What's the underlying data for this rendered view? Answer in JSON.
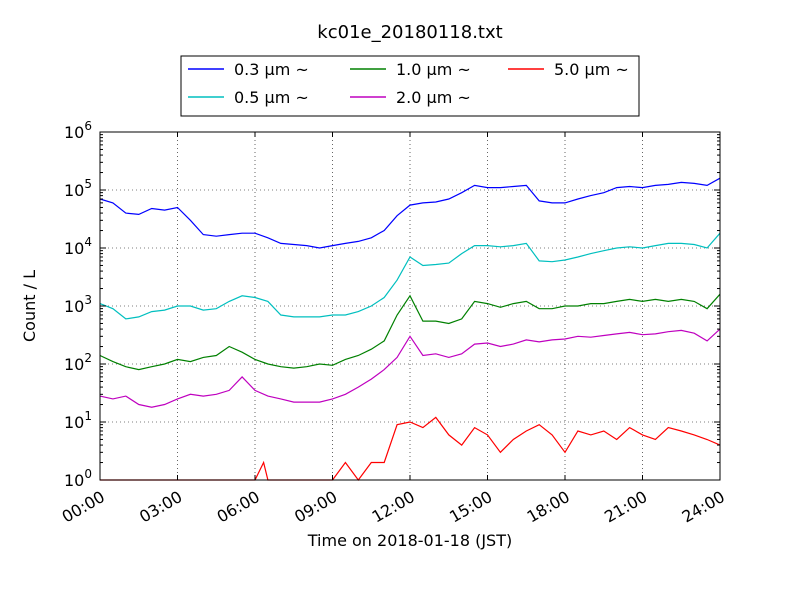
{
  "chart_data": {
    "type": "line",
    "title": "kc01e_20180118.txt",
    "xlabel": "Time on 2018-01-18 (JST)",
    "ylabel": "Count / L",
    "yscale": "log",
    "ylim": [
      1,
      1000000
    ],
    "xlim": [
      "00:00",
      "24:00"
    ],
    "grid": true,
    "legend_position": "top-center",
    "x_ticks": [
      "00:00",
      "03:00",
      "06:00",
      "09:00",
      "12:00",
      "15:00",
      "18:00",
      "21:00",
      "24:00"
    ],
    "y_ticks": [
      {
        "base": "10",
        "exp": "0",
        "value": 1
      },
      {
        "base": "10",
        "exp": "1",
        "value": 10
      },
      {
        "base": "10",
        "exp": "2",
        "value": 100
      },
      {
        "base": "10",
        "exp": "3",
        "value": 1000
      },
      {
        "base": "10",
        "exp": "4",
        "value": 10000
      },
      {
        "base": "10",
        "exp": "5",
        "value": 100000
      },
      {
        "base": "10",
        "exp": "6",
        "value": 1000000
      }
    ],
    "series": [
      {
        "name": "0.3 μm ~",
        "color": "#0000ff",
        "points": [
          [
            "00:00",
            70000
          ],
          [
            "00:30",
            60000
          ],
          [
            "01:00",
            40000
          ],
          [
            "01:30",
            38000
          ],
          [
            "02:00",
            48000
          ],
          [
            "02:30",
            45000
          ],
          [
            "03:00",
            50000
          ],
          [
            "03:30",
            30000
          ],
          [
            "04:00",
            17000
          ],
          [
            "04:30",
            16000
          ],
          [
            "05:00",
            17000
          ],
          [
            "05:30",
            18000
          ],
          [
            "06:00",
            18000
          ],
          [
            "06:30",
            15000
          ],
          [
            "07:00",
            12000
          ],
          [
            "07:30",
            11500
          ],
          [
            "08:00",
            11000
          ],
          [
            "08:30",
            10000
          ],
          [
            "09:00",
            11000
          ],
          [
            "09:30",
            12000
          ],
          [
            "10:00",
            13000
          ],
          [
            "10:30",
            15000
          ],
          [
            "11:00",
            20000
          ],
          [
            "11:30",
            36000
          ],
          [
            "12:00",
            55000
          ],
          [
            "12:30",
            60000
          ],
          [
            "13:00",
            62000
          ],
          [
            "13:30",
            70000
          ],
          [
            "14:00",
            90000
          ],
          [
            "14:30",
            120000
          ],
          [
            "15:00",
            110000
          ],
          [
            "15:30",
            110000
          ],
          [
            "16:00",
            115000
          ],
          [
            "16:30",
            120000
          ],
          [
            "17:00",
            65000
          ],
          [
            "17:30",
            60000
          ],
          [
            "18:00",
            60000
          ],
          [
            "18:30",
            70000
          ],
          [
            "19:00",
            80000
          ],
          [
            "19:30",
            90000
          ],
          [
            "20:00",
            110000
          ],
          [
            "20:30",
            115000
          ],
          [
            "21:00",
            110000
          ],
          [
            "21:30",
            120000
          ],
          [
            "22:00",
            125000
          ],
          [
            "22:30",
            135000
          ],
          [
            "23:00",
            130000
          ],
          [
            "23:30",
            120000
          ],
          [
            "24:00",
            160000
          ]
        ]
      },
      {
        "name": "0.5 μm ~",
        "color": "#00bfbf",
        "points": [
          [
            "00:00",
            1100
          ],
          [
            "00:30",
            900
          ],
          [
            "01:00",
            600
          ],
          [
            "01:30",
            650
          ],
          [
            "02:00",
            800
          ],
          [
            "02:30",
            850
          ],
          [
            "03:00",
            1000
          ],
          [
            "03:30",
            1000
          ],
          [
            "04:00",
            850
          ],
          [
            "04:30",
            900
          ],
          [
            "05:00",
            1200
          ],
          [
            "05:30",
            1500
          ],
          [
            "06:00",
            1400
          ],
          [
            "06:30",
            1200
          ],
          [
            "07:00",
            700
          ],
          [
            "07:30",
            650
          ],
          [
            "08:00",
            650
          ],
          [
            "08:30",
            650
          ],
          [
            "09:00",
            700
          ],
          [
            "09:30",
            700
          ],
          [
            "10:00",
            800
          ],
          [
            "10:30",
            1000
          ],
          [
            "11:00",
            1400
          ],
          [
            "11:30",
            2800
          ],
          [
            "12:00",
            7000
          ],
          [
            "12:30",
            5000
          ],
          [
            "13:00",
            5200
          ],
          [
            "13:30",
            5500
          ],
          [
            "14:00",
            8000
          ],
          [
            "14:30",
            11000
          ],
          [
            "15:00",
            11000
          ],
          [
            "15:30",
            10500
          ],
          [
            "16:00",
            11000
          ],
          [
            "16:30",
            12000
          ],
          [
            "17:00",
            6000
          ],
          [
            "17:30",
            5800
          ],
          [
            "18:00",
            6200
          ],
          [
            "18:30",
            7000
          ],
          [
            "19:00",
            8000
          ],
          [
            "19:30",
            9000
          ],
          [
            "20:00",
            10000
          ],
          [
            "20:30",
            10500
          ],
          [
            "21:00",
            10000
          ],
          [
            "21:30",
            11000
          ],
          [
            "22:00",
            12000
          ],
          [
            "22:30",
            12000
          ],
          [
            "23:00",
            11500
          ],
          [
            "23:30",
            10000
          ],
          [
            "24:00",
            18000
          ]
        ]
      },
      {
        "name": "1.0 μm ~",
        "color": "#008000",
        "points": [
          [
            "00:00",
            140
          ],
          [
            "00:30",
            110
          ],
          [
            "01:00",
            90
          ],
          [
            "01:30",
            80
          ],
          [
            "02:00",
            90
          ],
          [
            "02:30",
            100
          ],
          [
            "03:00",
            120
          ],
          [
            "03:30",
            110
          ],
          [
            "04:00",
            130
          ],
          [
            "04:30",
            140
          ],
          [
            "05:00",
            200
          ],
          [
            "05:30",
            160
          ],
          [
            "06:00",
            120
          ],
          [
            "06:30",
            100
          ],
          [
            "07:00",
            90
          ],
          [
            "07:30",
            85
          ],
          [
            "08:00",
            90
          ],
          [
            "08:30",
            100
          ],
          [
            "09:00",
            95
          ],
          [
            "09:30",
            120
          ],
          [
            "10:00",
            140
          ],
          [
            "10:30",
            180
          ],
          [
            "11:00",
            250
          ],
          [
            "11:30",
            700
          ],
          [
            "12:00",
            1500
          ],
          [
            "12:30",
            550
          ],
          [
            "13:00",
            550
          ],
          [
            "13:30",
            500
          ],
          [
            "14:00",
            600
          ],
          [
            "14:30",
            1200
          ],
          [
            "15:00",
            1100
          ],
          [
            "15:30",
            950
          ],
          [
            "16:00",
            1100
          ],
          [
            "16:30",
            1200
          ],
          [
            "17:00",
            900
          ],
          [
            "17:30",
            900
          ],
          [
            "18:00",
            1000
          ],
          [
            "18:30",
            1000
          ],
          [
            "19:00",
            1100
          ],
          [
            "19:30",
            1100
          ],
          [
            "20:00",
            1200
          ],
          [
            "20:30",
            1300
          ],
          [
            "21:00",
            1200
          ],
          [
            "21:30",
            1300
          ],
          [
            "22:00",
            1200
          ],
          [
            "22:30",
            1300
          ],
          [
            "23:00",
            1200
          ],
          [
            "23:30",
            900
          ],
          [
            "24:00",
            1600
          ]
        ]
      },
      {
        "name": "2.0 μm ~",
        "color": "#bf00bf",
        "points": [
          [
            "00:00",
            28
          ],
          [
            "00:30",
            25
          ],
          [
            "01:00",
            28
          ],
          [
            "01:30",
            20
          ],
          [
            "02:00",
            18
          ],
          [
            "02:30",
            20
          ],
          [
            "03:00",
            25
          ],
          [
            "03:30",
            30
          ],
          [
            "04:00",
            28
          ],
          [
            "04:30",
            30
          ],
          [
            "05:00",
            35
          ],
          [
            "05:30",
            60
          ],
          [
            "06:00",
            35
          ],
          [
            "06:30",
            28
          ],
          [
            "07:00",
            25
          ],
          [
            "07:30",
            22
          ],
          [
            "08:00",
            22
          ],
          [
            "08:30",
            22
          ],
          [
            "09:00",
            25
          ],
          [
            "09:30",
            30
          ],
          [
            "10:00",
            40
          ],
          [
            "10:30",
            55
          ],
          [
            "11:00",
            80
          ],
          [
            "11:30",
            130
          ],
          [
            "12:00",
            300
          ],
          [
            "12:30",
            140
          ],
          [
            "13:00",
            150
          ],
          [
            "13:30",
            130
          ],
          [
            "14:00",
            150
          ],
          [
            "14:30",
            220
          ],
          [
            "15:00",
            230
          ],
          [
            "15:30",
            200
          ],
          [
            "16:00",
            220
          ],
          [
            "16:30",
            260
          ],
          [
            "17:00",
            240
          ],
          [
            "17:30",
            260
          ],
          [
            "18:00",
            270
          ],
          [
            "18:30",
            300
          ],
          [
            "19:00",
            290
          ],
          [
            "19:30",
            310
          ],
          [
            "20:00",
            330
          ],
          [
            "20:30",
            350
          ],
          [
            "21:00",
            320
          ],
          [
            "21:30",
            330
          ],
          [
            "22:00",
            360
          ],
          [
            "22:30",
            380
          ],
          [
            "23:00",
            340
          ],
          [
            "23:30",
            250
          ],
          [
            "24:00",
            400
          ]
        ]
      },
      {
        "name": "5.0 μm ~",
        "color": "#ff0000",
        "points": [
          [
            "00:00",
            1
          ],
          [
            "01:00",
            1
          ],
          [
            "02:00",
            1
          ],
          [
            "03:00",
            1
          ],
          [
            "04:00",
            1
          ],
          [
            "05:00",
            1
          ],
          [
            "06:00",
            1
          ],
          [
            "06:20",
            2
          ],
          [
            "06:30",
            1
          ],
          [
            "07:00",
            1
          ],
          [
            "08:00",
            1
          ],
          [
            "09:00",
            1
          ],
          [
            "09:30",
            2
          ],
          [
            "10:00",
            1
          ],
          [
            "10:30",
            2
          ],
          [
            "11:00",
            2
          ],
          [
            "11:30",
            9
          ],
          [
            "12:00",
            10
          ],
          [
            "12:30",
            8
          ],
          [
            "13:00",
            12
          ],
          [
            "13:30",
            6
          ],
          [
            "14:00",
            4
          ],
          [
            "14:30",
            8
          ],
          [
            "15:00",
            6
          ],
          [
            "15:30",
            3
          ],
          [
            "16:00",
            5
          ],
          [
            "16:30",
            7
          ],
          [
            "17:00",
            9
          ],
          [
            "17:30",
            6
          ],
          [
            "18:00",
            3
          ],
          [
            "18:30",
            7
          ],
          [
            "19:00",
            6
          ],
          [
            "19:30",
            7
          ],
          [
            "20:00",
            5
          ],
          [
            "20:30",
            8
          ],
          [
            "21:00",
            6
          ],
          [
            "21:30",
            5
          ],
          [
            "22:00",
            8
          ],
          [
            "22:30",
            7
          ],
          [
            "23:00",
            6
          ],
          [
            "23:30",
            5
          ],
          [
            "24:00",
            4
          ]
        ]
      }
    ]
  }
}
